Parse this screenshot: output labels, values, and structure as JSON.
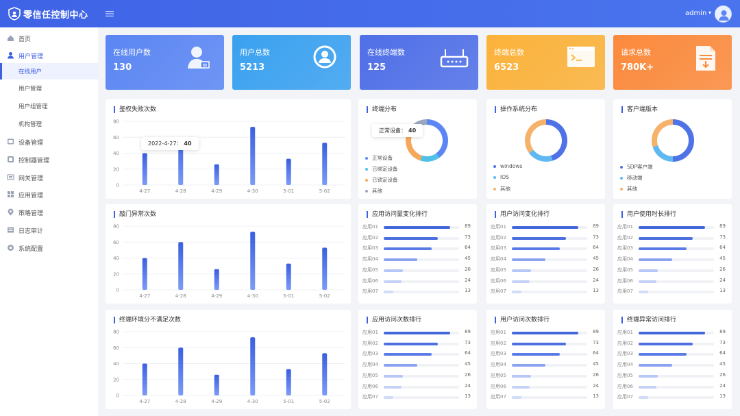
{
  "header": {
    "brand": "零信任控制中心",
    "user": "admin",
    "caret": "▾"
  },
  "sidebar": {
    "items": [
      {
        "label": "首页",
        "icon": "home-icon"
      },
      {
        "label": "用户管理",
        "icon": "user-icon"
      },
      {
        "label": "在线用户",
        "sub": true,
        "active": true
      },
      {
        "label": "用户管理",
        "sub": true
      },
      {
        "label": "用户组管理",
        "sub": true
      },
      {
        "label": "机构管理",
        "sub": true
      },
      {
        "label": "设备管理",
        "icon": "device-icon"
      },
      {
        "label": "控制器管理",
        "icon": "controller-icon"
      },
      {
        "label": "网关管理",
        "icon": "gateway-icon"
      },
      {
        "label": "应用管理",
        "icon": "apps-icon"
      },
      {
        "label": "策略管理",
        "icon": "policy-icon"
      },
      {
        "label": "日志审计",
        "icon": "log-icon"
      },
      {
        "label": "系统配置",
        "icon": "settings-icon"
      }
    ]
  },
  "stats": [
    {
      "label": "在线用户数",
      "value": "130",
      "icon": "online-user-icon",
      "color": "#5b86f3"
    },
    {
      "label": "用户总数",
      "value": "5213",
      "icon": "user-total-icon",
      "color": "#3aa1f0"
    },
    {
      "label": "在线终端数",
      "value": "125",
      "icon": "router-icon",
      "color": "#4f6fe7"
    },
    {
      "label": "终端总数",
      "value": "6523",
      "icon": "terminal-icon",
      "color": "#fbb23a"
    },
    {
      "label": "请求总数",
      "value": "780K+",
      "icon": "document-icon",
      "color": "#fb8a3c"
    }
  ],
  "bar_cards": [
    {
      "title": "鉴权失败次数",
      "tooltip": {
        "label": "2022-4-27：",
        "value": "40"
      }
    },
    {
      "title": "敲门异常次数"
    },
    {
      "title": "终端环境分不满足次数"
    }
  ],
  "chart_data": [
    {
      "type": "bar",
      "title": "鉴权失败次数",
      "categories": [
        "4-27",
        "4-28",
        "4-29",
        "4-30",
        "5-01",
        "5-02"
      ],
      "values": [
        40,
        60,
        26,
        73,
        33,
        53
      ],
      "ylim": [
        0,
        80
      ],
      "yticks": [
        "0",
        "20",
        "40",
        "60",
        "80"
      ]
    },
    {
      "type": "bar",
      "title": "敲门异常次数",
      "categories": [
        "4-27",
        "4-28",
        "4-29",
        "4-30",
        "5-01",
        "5-02"
      ],
      "values": [
        40,
        60,
        26,
        73,
        33,
        53
      ],
      "ylim": [
        0,
        80
      ],
      "yticks": [
        "0",
        "20",
        "40",
        "60",
        "80"
      ]
    },
    {
      "type": "bar",
      "title": "终端环境分不满足次数",
      "categories": [
        "4-27",
        "4-28",
        "4-29",
        "4-30",
        "5-01",
        "5-02"
      ],
      "values": [
        40,
        60,
        26,
        73,
        33,
        53
      ],
      "ylim": [
        0,
        80
      ],
      "yticks": [
        "0",
        "20",
        "40",
        "60",
        "80"
      ]
    },
    {
      "type": "pie",
      "title": "终端分布",
      "categories": [
        "正常设备",
        "已绑定设备",
        "已锁定设备",
        "其他"
      ],
      "values": [
        40,
        15,
        30,
        15
      ]
    },
    {
      "type": "pie",
      "title": "操作系统分布",
      "categories": [
        "windows",
        "IOS",
        "其他"
      ],
      "values": [
        45,
        20,
        35
      ]
    },
    {
      "type": "pie",
      "title": "客户端版本",
      "categories": [
        "SDP客户端",
        "移动端",
        "其他"
      ],
      "values": [
        50,
        20,
        30
      ]
    }
  ],
  "donut_cards": [
    {
      "title": "终端分布",
      "tooltip": {
        "label": "正常设备：",
        "value": "40"
      },
      "colors": [
        "#5b86f3",
        "#4fc1e8",
        "#f6a85a",
        "#9aa6bf"
      ]
    },
    {
      "title": "操作系统分布",
      "colors": [
        "#4f73e6",
        "#60b8f0",
        "#f6b26b"
      ]
    },
    {
      "title": "客户端版本",
      "colors": [
        "#4f73e6",
        "#60b8f0",
        "#f6b26b"
      ]
    }
  ],
  "rank_cards": [
    {
      "title": "应用访问量变化排行"
    },
    {
      "title": "用户访问变化排行"
    },
    {
      "title": "用户使用时长排行"
    },
    {
      "title": "应用访问次数排行"
    },
    {
      "title": "用户访问次数排行"
    },
    {
      "title": "终端异常访问排行"
    }
  ],
  "ranking": {
    "names": [
      "应用01",
      "应用02",
      "应用03",
      "应用04",
      "应用05",
      "应用06",
      "应用07"
    ],
    "values": [
      89,
      73,
      64,
      45,
      26,
      24,
      13
    ],
    "colors": [
      "#4467dc",
      "#4d6fe0",
      "#5a7be5",
      "#8aa3ef",
      "#b6c6f6",
      "#c5d2f8",
      "#d2dcf9"
    ]
  }
}
